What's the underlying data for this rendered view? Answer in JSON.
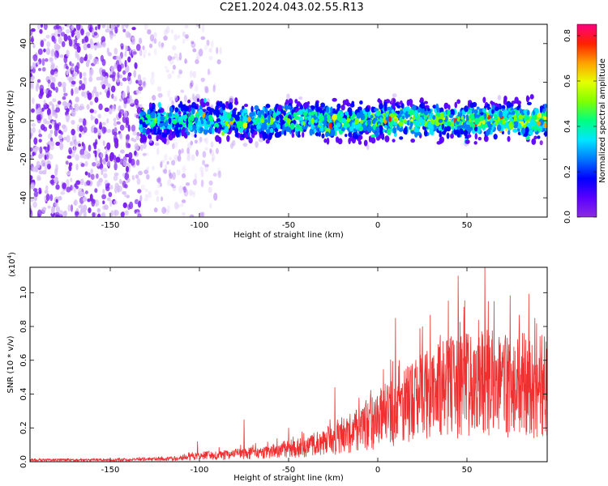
{
  "title": "C2E1.2024.043.02.55.R13",
  "colors": {
    "snr_line": "#ee3030",
    "colormap": [
      "#8a2be2",
      "#5a00ff",
      "#0000ff",
      "#0078ff",
      "#00e6ff",
      "#00ff80",
      "#80ff00",
      "#e6ff00",
      "#ffa000",
      "#ff2000",
      "#ff0080"
    ]
  },
  "chart_data": [
    {
      "type": "heatmap",
      "title": "C2E1.2024.043.02.55.R13",
      "xlabel": "Height of straight line (km)",
      "ylabel": "Frequency (Hz)",
      "xlim": [
        -195,
        95
      ],
      "ylim": [
        -50,
        50
      ],
      "xticks": [
        -150,
        -100,
        -50,
        0,
        50
      ],
      "yticks": [
        -40,
        -20,
        0,
        20,
        40
      ],
      "colorbar": {
        "label": "Normalized spectral amplitude",
        "range": [
          0.0,
          0.85
        ],
        "ticks": [
          0.0,
          0.2,
          0.4,
          0.6,
          0.8
        ]
      },
      "band": {
        "center_frequency_hz": 0,
        "half_width_hz": 8,
        "starts_at_km": -133
      }
    },
    {
      "type": "line",
      "xlabel": "Height of straight line (km)",
      "ylabel": "SNR (10 * v/v)",
      "y_scale_label": "(x10",
      "y_scale_exponent": "4",
      "y_scale_suffix": ")",
      "xlim": [
        -195,
        95
      ],
      "ylim": [
        0,
        1.15
      ],
      "xticks": [
        -150,
        -100,
        -50,
        0,
        50
      ],
      "yticks": [
        0.0,
        0.2,
        0.4,
        0.6,
        0.8,
        1.0
      ],
      "series": [
        {
          "envelope_x": [
            -195,
            -150,
            -130,
            -110,
            -100,
            -80,
            -60,
            -40,
            -20,
            0,
            20,
            40,
            60,
            95
          ],
          "envelope_mean": [
            0.01,
            0.01,
            0.015,
            0.02,
            0.035,
            0.045,
            0.06,
            0.09,
            0.15,
            0.25,
            0.36,
            0.44,
            0.46,
            0.45
          ],
          "peaks_x": [
            -101,
            -75,
            -50,
            -24,
            10,
            12,
            25,
            35,
            45,
            60,
            62,
            88,
            92
          ],
          "peaks_y": [
            0.12,
            0.25,
            0.2,
            0.44,
            0.85,
            0.6,
            0.8,
            0.75,
            1.1,
            1.15,
            0.95,
            0.85,
            0.75
          ]
        }
      ]
    }
  ]
}
